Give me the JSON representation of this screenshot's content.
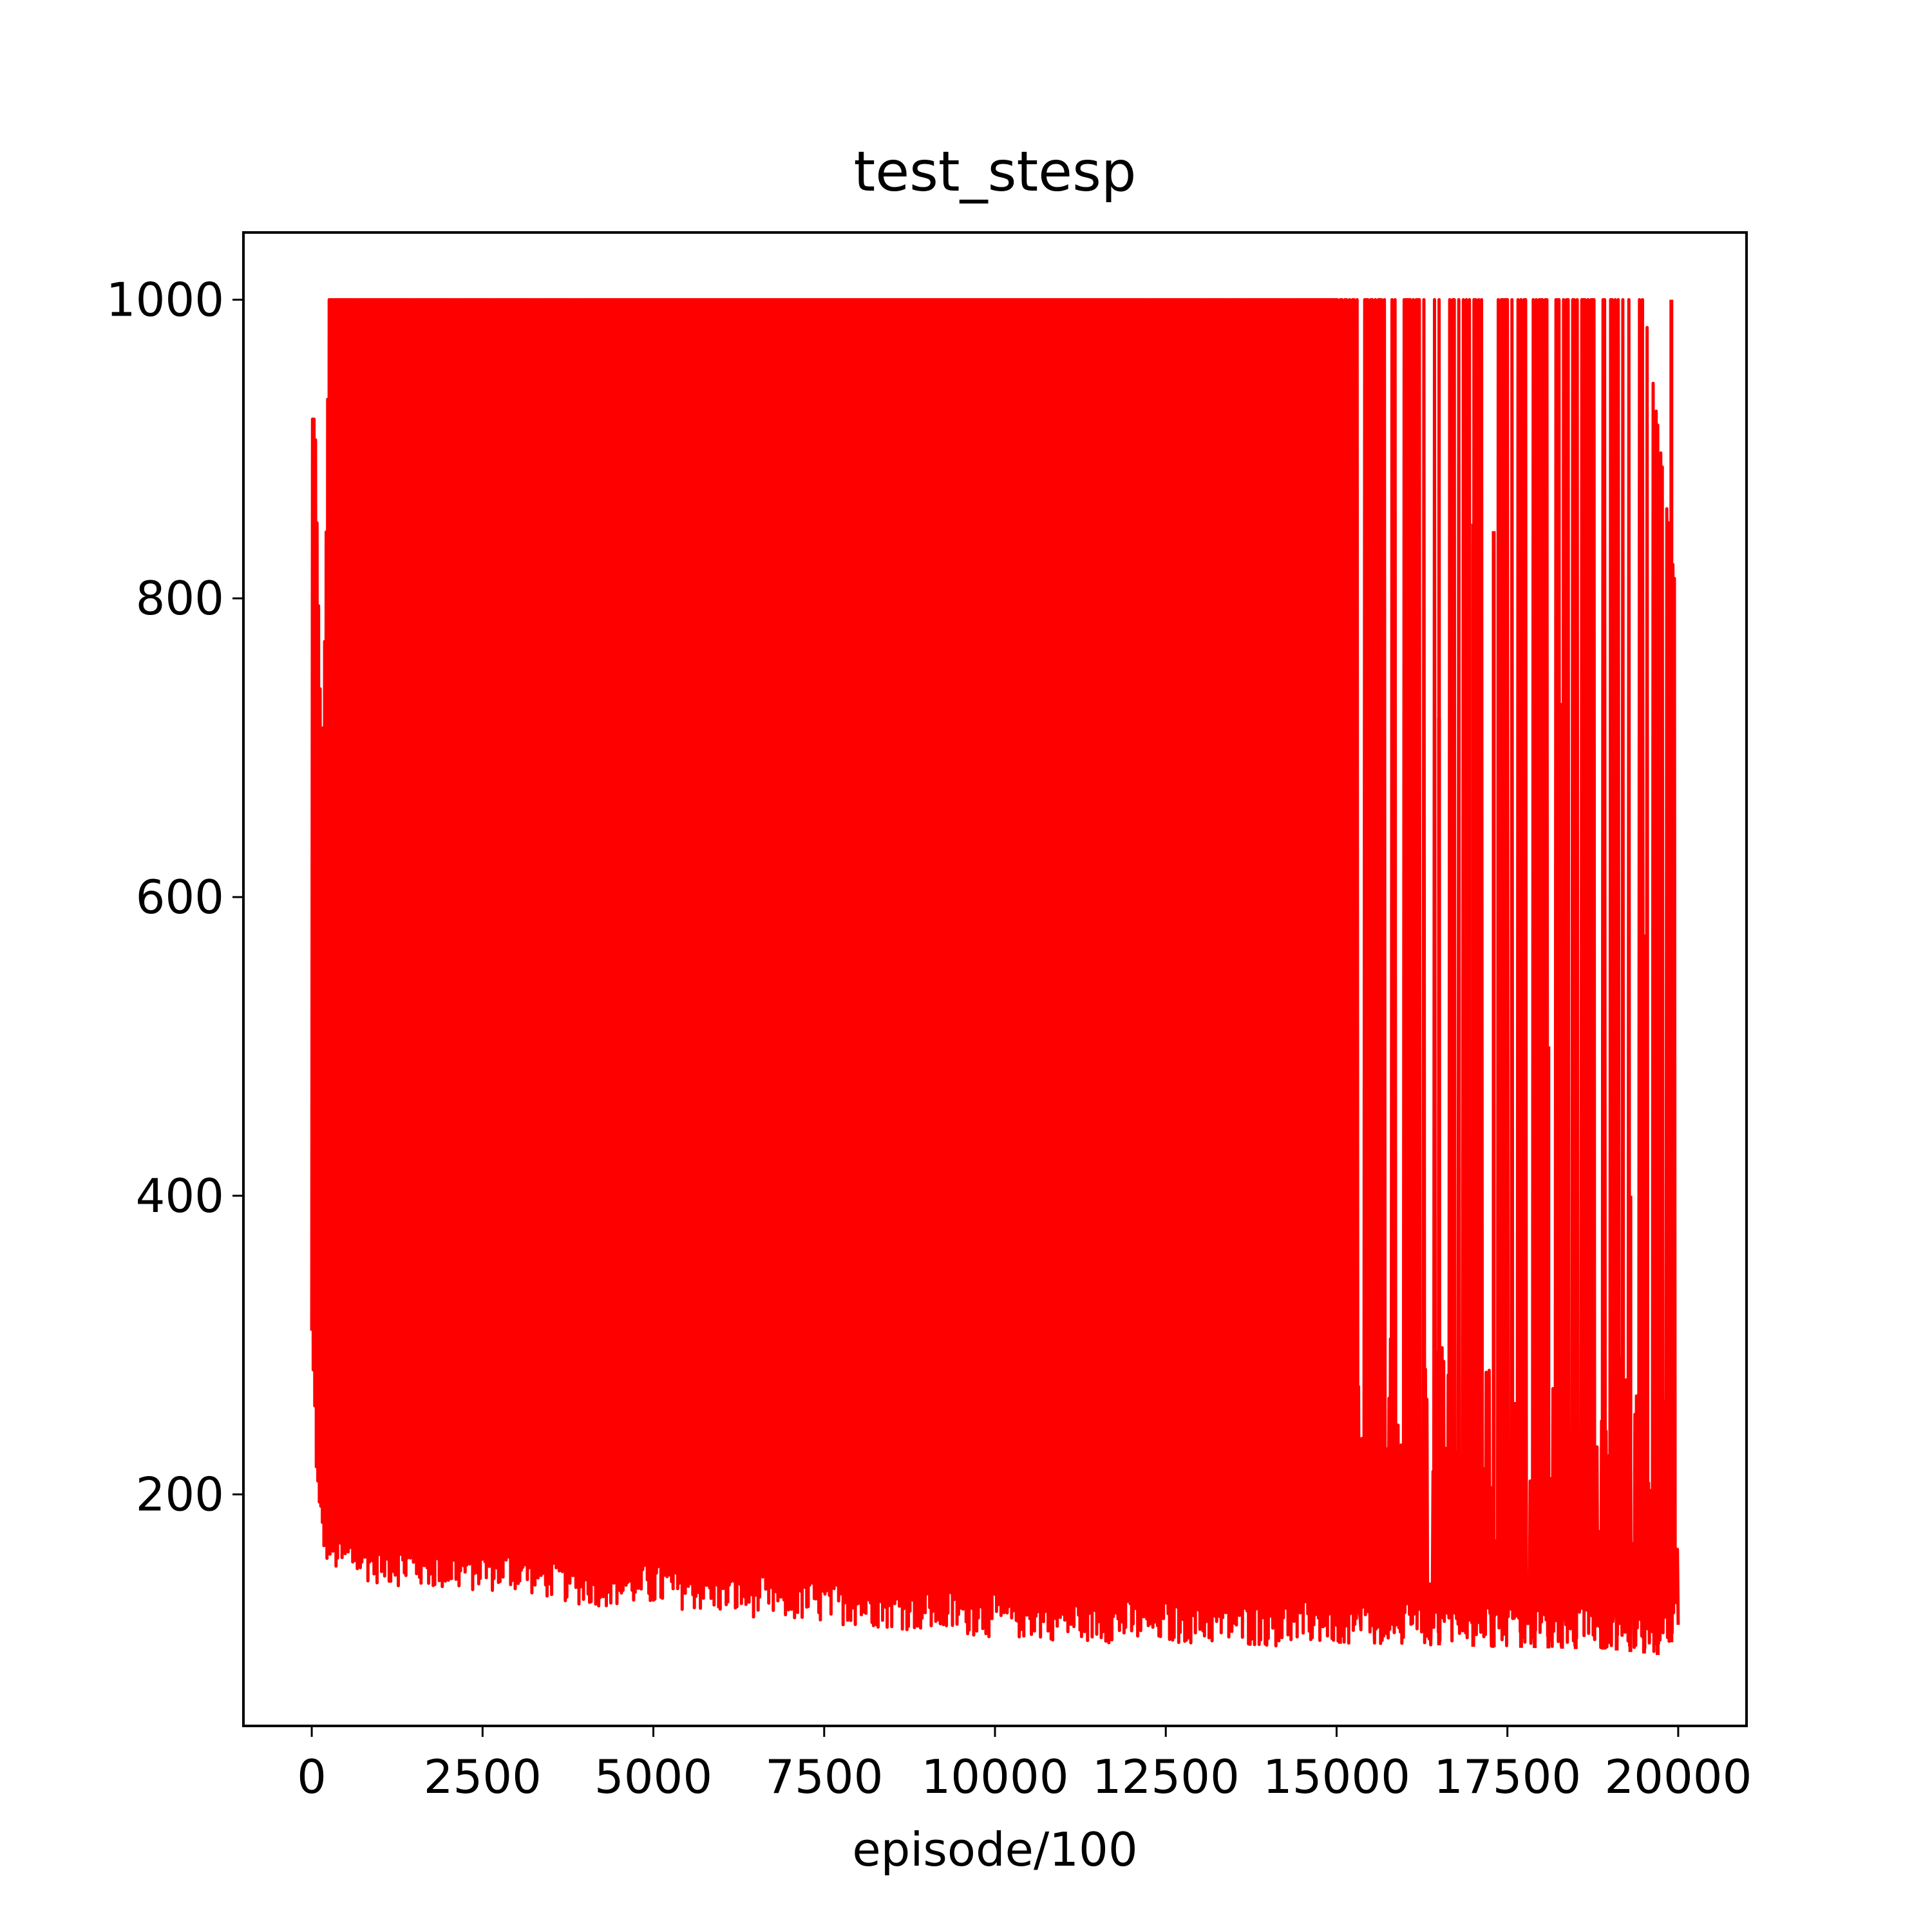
{
  "chart_data": {
    "type": "line",
    "title": "test_stesp",
    "xlabel": "episode/100",
    "ylabel": "",
    "xlim": [
      -1000,
      21000
    ],
    "ylim": [
      45,
      1045
    ],
    "xticks": [
      0,
      2500,
      5000,
      7500,
      10000,
      12500,
      15000,
      17500,
      20000
    ],
    "xtick_labels": [
      "0",
      "2500",
      "5000",
      "7500",
      "10000",
      "12500",
      "15000",
      "17500",
      "20000"
    ],
    "yticks": [
      200,
      400,
      600,
      800,
      1000
    ],
    "ytick_labels": [
      "200",
      "400",
      "600",
      "800",
      "1000"
    ],
    "grid": false,
    "legend": "none",
    "series": [
      {
        "color": "#ff0000",
        "style": "dense oscillating line between a lower envelope and an upper envelope",
        "lower_envelope": {
          "x": [
            0,
            100,
            200,
            400,
            1000,
            2000,
            3000,
            4000,
            5000,
            6000,
            7000,
            8000,
            9000,
            10000,
            11000,
            12000,
            13000,
            14000,
            15000,
            16000,
            17000,
            18000,
            19000,
            19800,
            20000
          ],
          "y": [
            290,
            175,
            155,
            145,
            140,
            135,
            135,
            125,
            125,
            120,
            115,
            112,
            108,
            104,
            102,
            100,
            100,
            98,
            100,
            100,
            98,
            97,
            96,
            92,
            110
          ]
        },
        "upper_envelope": {
          "x": [
            0,
            50,
            150,
            200,
            250,
            300,
            1000,
            2000,
            5000,
            8000,
            10000,
            12000,
            14000,
            15000,
            15500,
            16000,
            16500,
            17000,
            17500,
            18000,
            18500,
            19000,
            19500,
            20000
          ],
          "y": [
            920,
            920,
            670,
            800,
            1000,
            1000,
            1000,
            1000,
            1000,
            1000,
            1000,
            1000,
            1000,
            1000,
            1000,
            1000,
            1000,
            1000,
            1000,
            1000,
            1000,
            1000,
            1000,
            790
          ]
        },
        "spikes": {
          "x": [
            15050,
            16500,
            17000,
            17300,
            17700,
            17900,
            18100,
            18300,
            18500,
            18900,
            19100,
            19300,
            19500,
            19700,
            19900
          ],
          "y": [
            880,
            720,
            850,
            845,
            975,
            560,
            500,
            730,
            1000,
            440,
            900,
            400,
            575,
            410,
            1000
          ]
        }
      }
    ]
  }
}
